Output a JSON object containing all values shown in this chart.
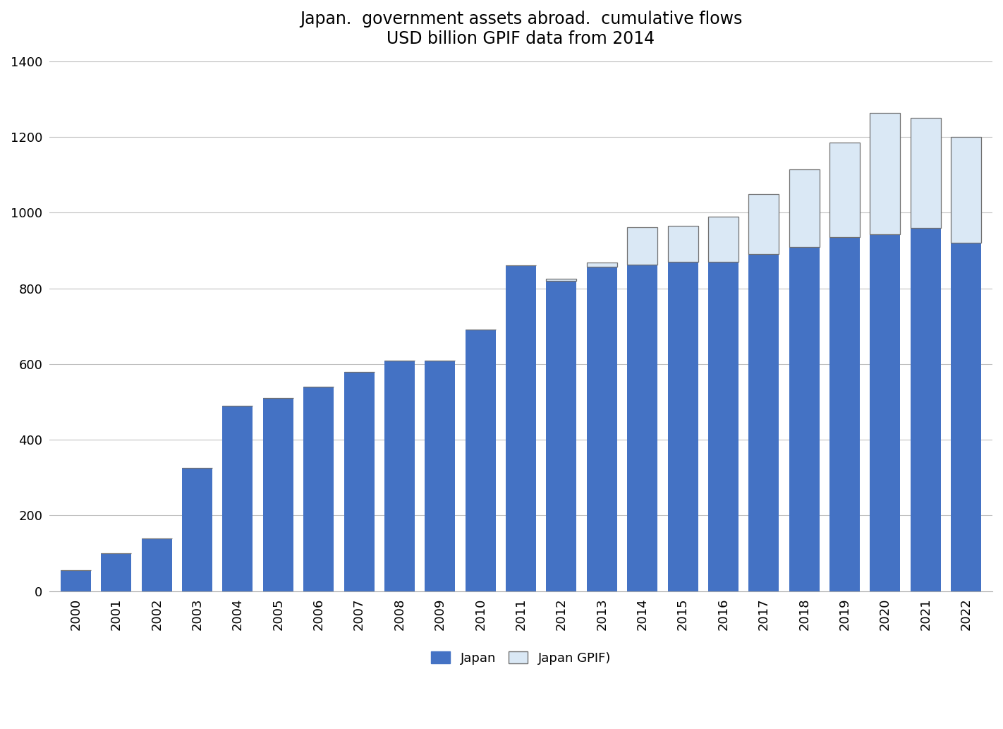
{
  "title_line1": "Japan.  government assets abroad.  cumulative flows",
  "title_line2": "USD billion GPIF data from 2014",
  "years": [
    "2000",
    "2001",
    "2002",
    "2003",
    "2004",
    "2005",
    "2006",
    "2007",
    "2008",
    "2009",
    "2010",
    "2011",
    "2012",
    "2013",
    "2014",
    "2015",
    "2016",
    "2017",
    "2018",
    "2019",
    "2020",
    "2021",
    "2022"
  ],
  "japan_values": [
    55,
    100,
    140,
    325,
    490,
    510,
    540,
    580,
    610,
    610,
    692,
    860,
    820,
    858,
    862,
    870,
    870,
    890,
    910,
    935,
    943,
    960,
    920
  ],
  "gpif_values": [
    0,
    0,
    0,
    0,
    0,
    0,
    0,
    0,
    0,
    0,
    0,
    0,
    5,
    10,
    100,
    95,
    120,
    160,
    205,
    250,
    320,
    290,
    280
  ],
  "japan_color": "#4472C4",
  "gpif_color": "#DAE8F5",
  "gpif_edgecolor": "#707070",
  "ylim": [
    0,
    1400
  ],
  "yticks": [
    0,
    200,
    400,
    600,
    800,
    1000,
    1200,
    1400
  ],
  "background_color": "#ffffff",
  "grid_color": "#c0c0c0",
  "legend_japan": "Japan",
  "legend_gpif": "Japan GPIF)",
  "title_fontsize": 17,
  "tick_fontsize": 13,
  "bar_width": 0.75
}
